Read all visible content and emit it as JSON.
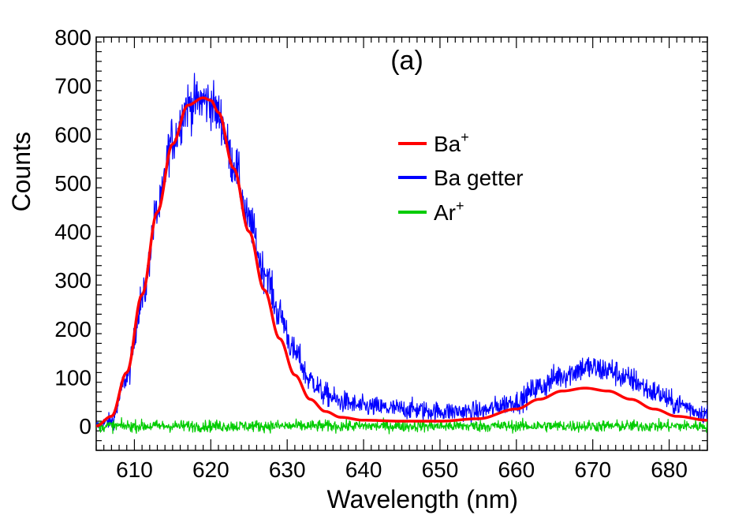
{
  "chart_data": {
    "type": "line",
    "annotation": "(a)",
    "xlabel": "Wavelength (nm)",
    "ylabel": "Counts",
    "xlim": [
      605,
      685
    ],
    "ylim": [
      -50,
      800
    ],
    "xticks": [
      610,
      620,
      630,
      640,
      650,
      660,
      670,
      680
    ],
    "yticks": [
      0,
      100,
      200,
      300,
      400,
      500,
      600,
      700,
      800
    ],
    "legend_position": "top-right",
    "series": [
      {
        "name": "Ba",
        "name_superscript": "+",
        "color": "#ff0000",
        "noisy": false,
        "x": [
          605,
          607,
          609,
          611,
          613,
          615,
          617,
          619,
          620,
          621,
          623,
          625,
          627,
          629,
          631,
          633,
          635,
          637,
          640,
          645,
          650,
          655,
          660,
          663,
          666,
          669,
          672,
          675,
          678,
          681,
          685
        ],
        "y": [
          0,
          20,
          110,
          270,
          440,
          580,
          660,
          675,
          670,
          645,
          530,
          400,
          280,
          180,
          105,
          55,
          30,
          18,
          12,
          10,
          10,
          15,
          35,
          55,
          72,
          78,
          72,
          55,
          35,
          20,
          12
        ]
      },
      {
        "name": "Ba getter",
        "color": "#0000ff",
        "noisy": true,
        "x": [
          605,
          607,
          609,
          611,
          613,
          615,
          617,
          619,
          620,
          621,
          623,
          625,
          627,
          629,
          631,
          633,
          635,
          637,
          640,
          645,
          650,
          655,
          660,
          663,
          666,
          669,
          672,
          675,
          678,
          681,
          685
        ],
        "y": [
          0,
          10,
          100,
          260,
          440,
          590,
          660,
          670,
          665,
          640,
          540,
          420,
          320,
          230,
          150,
          95,
          65,
          50,
          40,
          35,
          30,
          30,
          50,
          80,
          105,
          120,
          115,
          95,
          70,
          45,
          25
        ]
      },
      {
        "name": "Ar",
        "name_superscript": "+",
        "color": "#00cc00",
        "noisy": true,
        "x": [
          605,
          685
        ],
        "y": [
          0,
          0
        ]
      }
    ]
  }
}
